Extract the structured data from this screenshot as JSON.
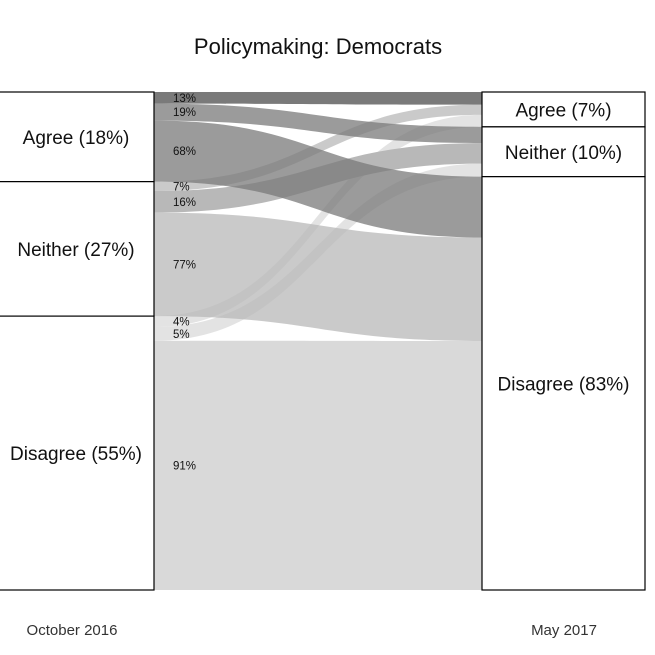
{
  "chart_data": {
    "type": "alluvial",
    "title": "Policymaking: Democrats",
    "periods": [
      "October 2016",
      "May 2017"
    ],
    "left_nodes": [
      {
        "key": "agree",
        "label": "Agree (18%)",
        "share": 18
      },
      {
        "key": "neither",
        "label": "Neither (27%)",
        "share": 27
      },
      {
        "key": "disagree",
        "label": "Disagree (55%)",
        "share": 55
      }
    ],
    "right_nodes": [
      {
        "key": "agree",
        "label": "Agree (7%)",
        "share": 7
      },
      {
        "key": "neither",
        "label": "Neither (10%)",
        "share": 10
      },
      {
        "key": "disagree",
        "label": "Disagree (83%)",
        "share": 83
      }
    ],
    "flows": [
      {
        "from": "agree",
        "to": "agree",
        "label": "13%",
        "pct": 13
      },
      {
        "from": "agree",
        "to": "neither",
        "label": "19%",
        "pct": 19
      },
      {
        "from": "agree",
        "to": "disagree",
        "label": "68%",
        "pct": 68
      },
      {
        "from": "neither",
        "to": "agree",
        "label": "7%",
        "pct": 7
      },
      {
        "from": "neither",
        "to": "neither",
        "label": "16%",
        "pct": 16
      },
      {
        "from": "neither",
        "to": "disagree",
        "label": "77%",
        "pct": 77
      },
      {
        "from": "disagree",
        "to": "agree",
        "label": "4%",
        "pct": 4
      },
      {
        "from": "disagree",
        "to": "neither",
        "label": "5%",
        "pct": 5
      },
      {
        "from": "disagree",
        "to": "disagree",
        "label": "91%",
        "pct": 91
      }
    ],
    "colors": {
      "agree": "#7a7a7a",
      "neither": "#b8b8b8",
      "disagree": "#d9d9d9",
      "box_fill": "#ffffff",
      "box_stroke": "#000000"
    }
  }
}
